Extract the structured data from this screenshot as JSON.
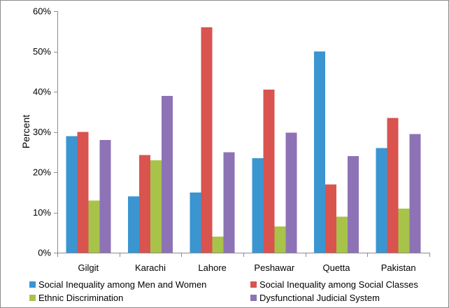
{
  "chart_data": {
    "type": "bar",
    "title": "",
    "xlabel": "",
    "ylabel": "Percent",
    "ylim": [
      0,
      60
    ],
    "yticks": [
      "0%",
      "10%",
      "20%",
      "30%",
      "40%",
      "50%",
      "60%"
    ],
    "ytick_values": [
      0,
      10,
      20,
      30,
      40,
      50,
      60
    ],
    "categories": [
      "Gilgit",
      "Karachi",
      "Lahore",
      "Peshawar",
      "Quetta",
      "Pakistan"
    ],
    "series": [
      {
        "name": "Social Inequality among Men and Women",
        "color": "#3b95d1",
        "values": [
          29,
          14,
          15,
          23.5,
          50,
          26
        ]
      },
      {
        "name": "Social Inequality among Social Classes",
        "color": "#d9534f",
        "values": [
          30,
          24.3,
          56,
          40.5,
          17,
          33.5
        ]
      },
      {
        "name": "Ethnic Discrimination",
        "color": "#a8c34a",
        "values": [
          13,
          23,
          4,
          6.5,
          9,
          11
        ]
      },
      {
        "name": "Dysfunctional Judicial System",
        "color": "#8d73b5",
        "values": [
          28,
          39,
          25,
          29.8,
          24,
          29.5
        ]
      }
    ],
    "grid": false,
    "legend_position": "bottom"
  }
}
